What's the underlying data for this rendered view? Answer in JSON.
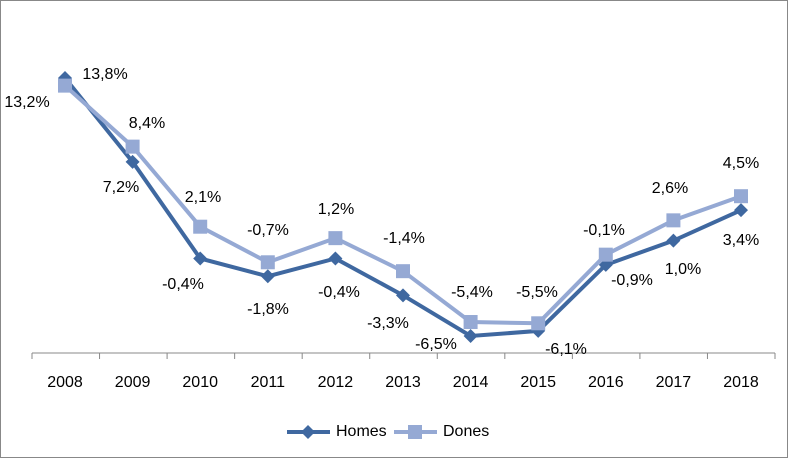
{
  "chart_data": {
    "type": "line",
    "categories": [
      "2008",
      "2009",
      "2010",
      "2011",
      "2012",
      "2013",
      "2014",
      "2015",
      "2016",
      "2017",
      "2018"
    ],
    "series": [
      {
        "name": "Homes",
        "color": "#3f68a0",
        "marker": "diamond",
        "values": [
          13.8,
          7.2,
          -0.4,
          -1.8,
          -0.4,
          -3.3,
          -6.5,
          -6.1,
          -0.9,
          1.0,
          3.4
        ],
        "value_labels": [
          "13,8%",
          "7,2%",
          "-0,4%",
          "-1,8%",
          "-0,4%",
          "-3,3%",
          "-6,5%",
          "-6,1%",
          "-0,9%",
          "1,0%",
          "3,4%"
        ]
      },
      {
        "name": "Dones",
        "color": "#95a9d4",
        "marker": "square",
        "values": [
          13.2,
          8.4,
          2.1,
          -0.7,
          1.2,
          -1.4,
          -5.4,
          -5.5,
          -0.1,
          2.6,
          4.5
        ],
        "value_labels": [
          "13,2%",
          "8,4%",
          "2,1%",
          "-0,7%",
          "1,2%",
          "-1,4%",
          "-5,4%",
          "-5,5%",
          "-0,1%",
          "2,6%",
          "4,5%"
        ]
      }
    ],
    "legend": "bottom"
  }
}
